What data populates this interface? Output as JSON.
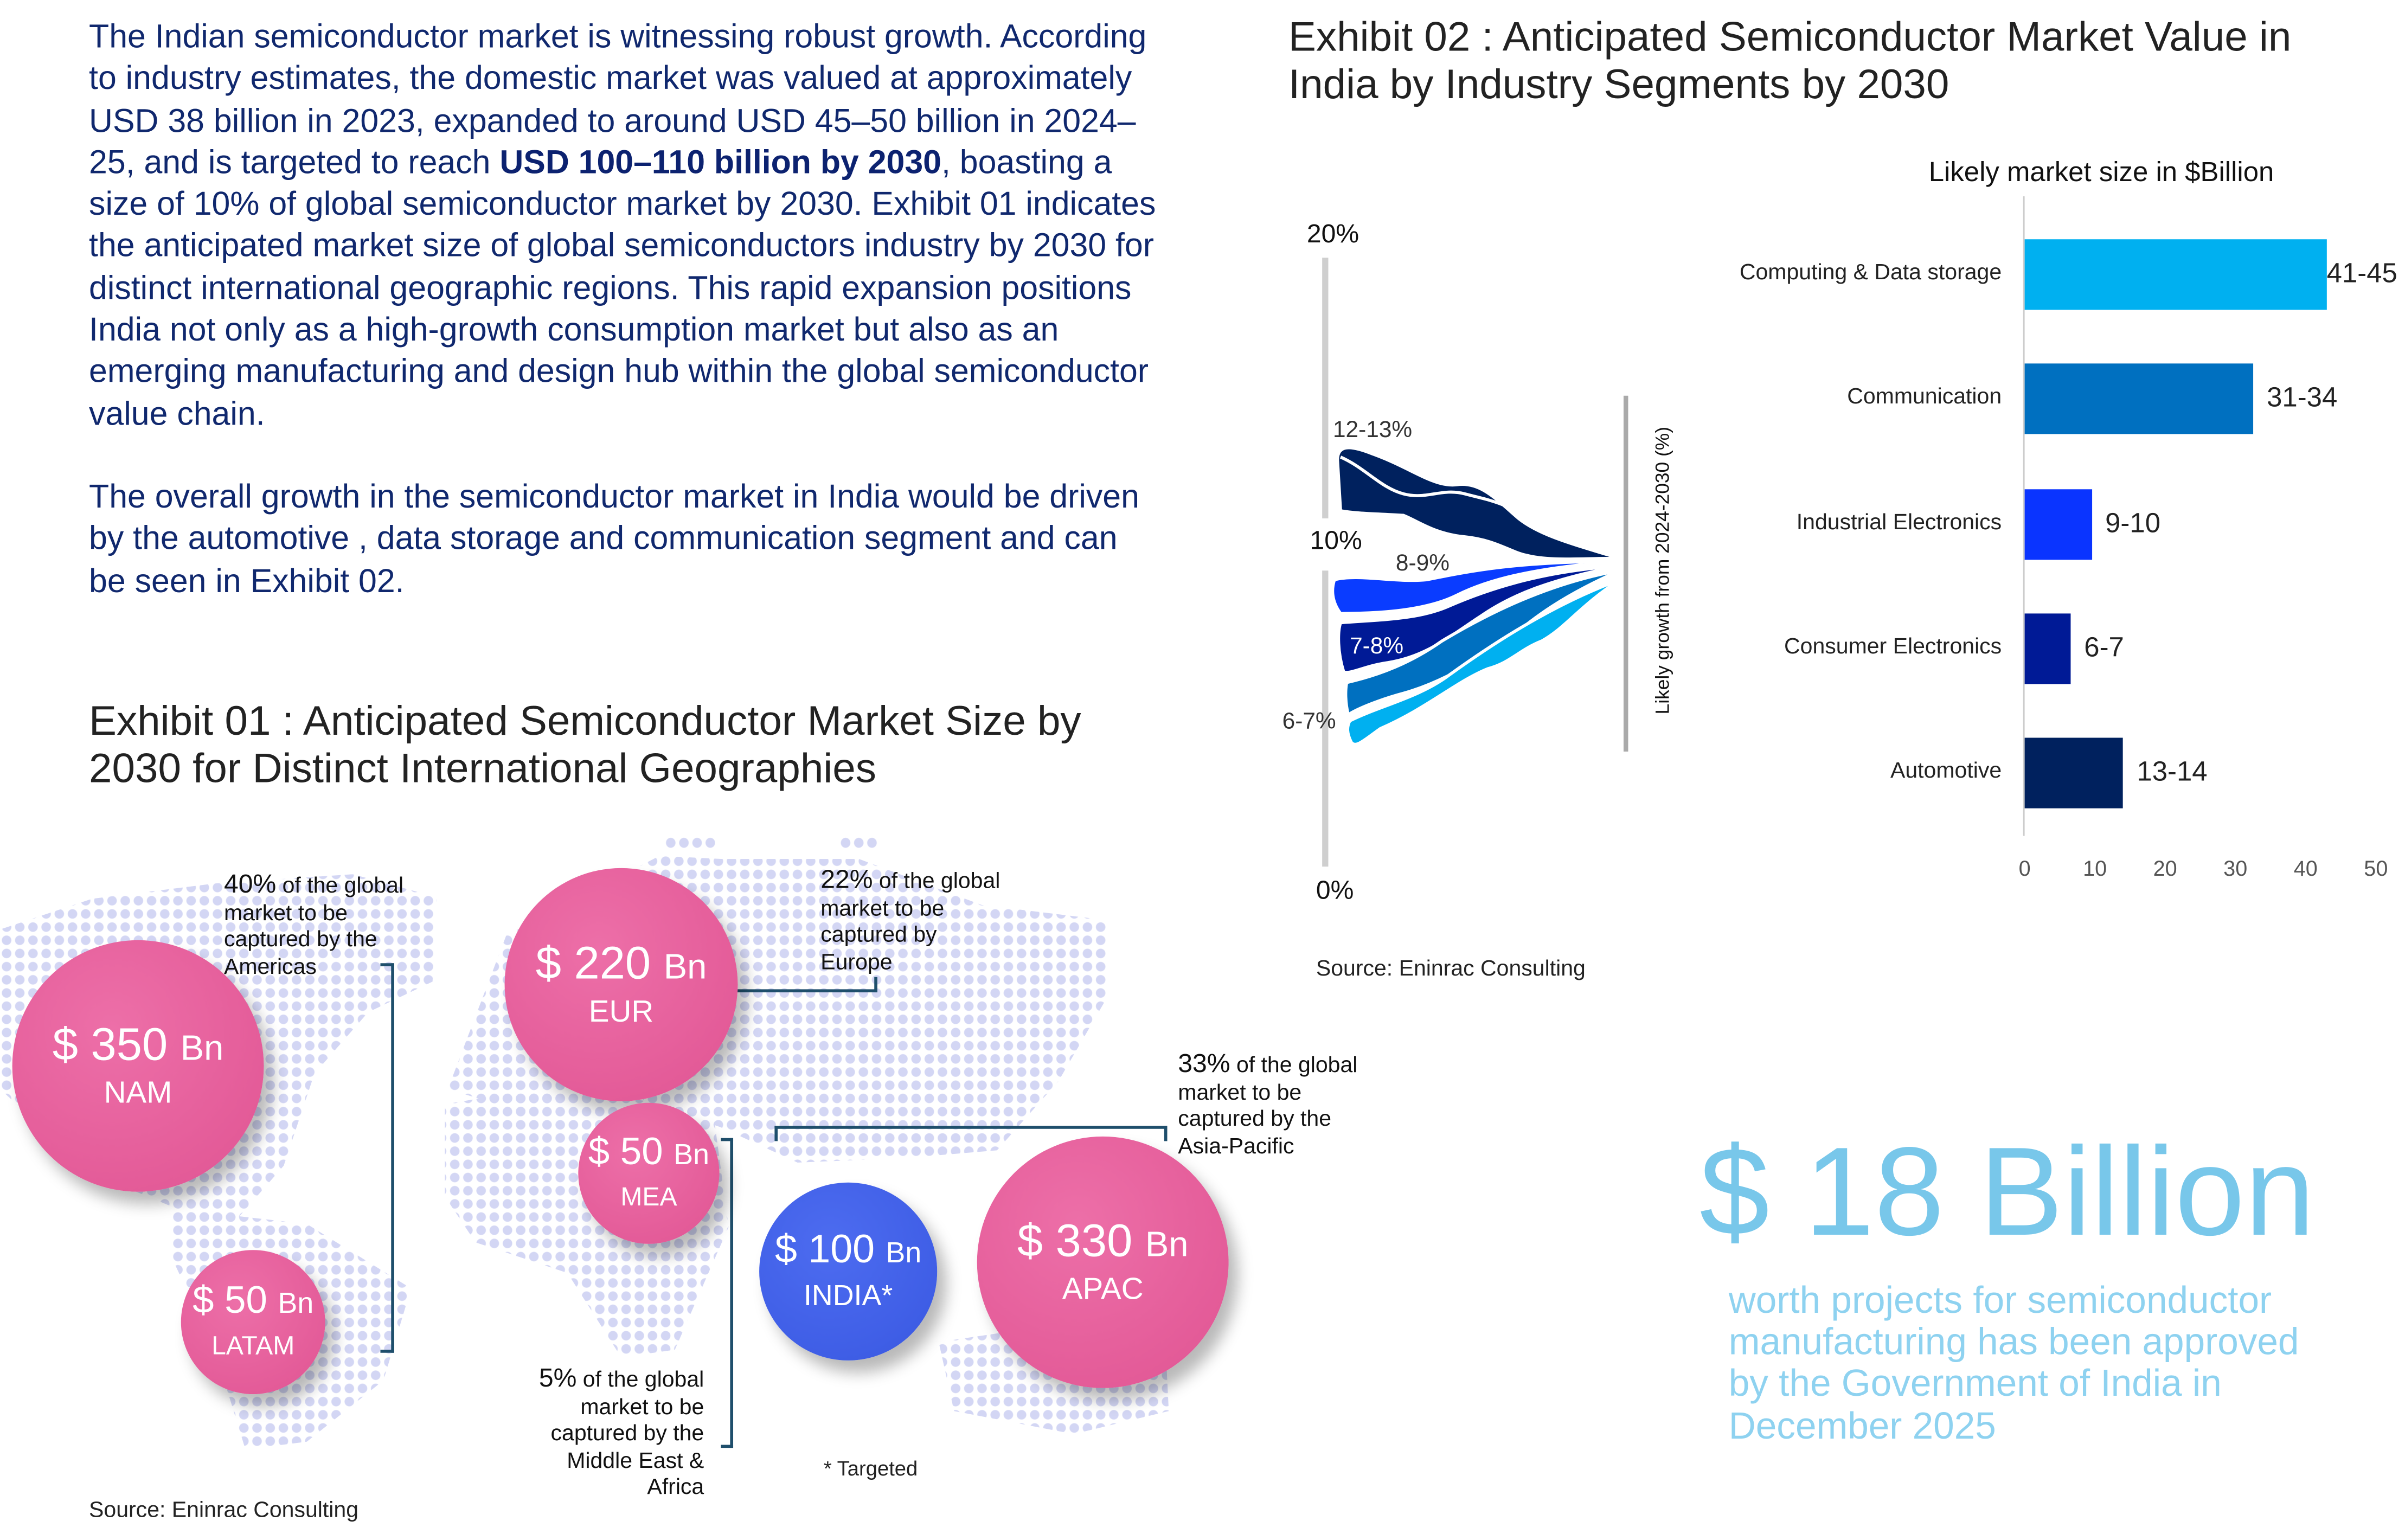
{
  "intro": {
    "p1_a": "The Indian semiconductor market is witnessing robust growth. According to industry estimates, the domestic market was valued at approximately USD 38 billion in 2023, expanded to around USD 45–50 billion in 2024–25, and is targeted to reach ",
    "p1_bold": "USD 100–110 billion by 2030",
    "p1_b": ", boasting a size of 10% of global semiconductor market by 2030. Exhibit 01 indicates the anticipated market size of global semiconductors industry by 2030 for distinct international geographic regions. This rapid expansion positions India not only as a high-growth consumption market but also as an emerging manufacturing and design hub within the global semiconductor value chain.",
    "p2": "The overall growth in the semiconductor market in India would be driven by the automotive , data storage and communication segment and can be seen in Exhibit 02."
  },
  "exhibit01": {
    "title": "Exhibit 01 : Anticipated Semiconductor Market Size by 2030 for Distinct International Geographies",
    "regions": [
      {
        "value": "$ 350",
        "unit": "Bn",
        "region": "NAM"
      },
      {
        "value": "$ 220",
        "unit": "Bn",
        "region": "EUR"
      },
      {
        "value": "$ 50",
        "unit": "Bn",
        "region": "MEA"
      },
      {
        "value": "$ 50",
        "unit": "Bn",
        "region": "LATAM"
      },
      {
        "value": "$ 100",
        "unit": "Bn",
        "region": "INDIA*"
      },
      {
        "value": "$ 330",
        "unit": "Bn",
        "region": "APAC"
      }
    ],
    "notes": {
      "americas_pct": "40%",
      "americas_text": " of the global market to be captured by the Americas",
      "europe_pct": "22%",
      "europe_text": " of the global market to be captured by Europe",
      "apac_pct": "33%",
      "apac_text": " of the global market to be captured by the Asia-Pacific",
      "mea_pct": "5%",
      "mea_text": " of the global market to be captured by the Middle East & Africa"
    },
    "footnote": "* Targeted",
    "source": "Source: Eninrac Consulting",
    "colors": {
      "bubble": "#e45c99",
      "india": "#3f5ee6",
      "dots": "#d3d6f4",
      "bracket": "#1f4f6c"
    }
  },
  "exhibit02": {
    "title": "Exhibit 02 : Anticipated Semiconductor Market Value in India by Industry Segments by 2030",
    "source": "Source: Eninrac Consulting"
  },
  "chart_data": [
    {
      "type": "area",
      "ylabel": "Likely growth from 2024-2030 (%)",
      "yticks": [
        "20%",
        "10%",
        "0%"
      ],
      "ylim": [
        0,
        20
      ],
      "annotations": [
        "12-13%",
        "8-9%",
        "7-8%",
        "6-7%"
      ],
      "series": [
        {
          "label": "12-13%",
          "color": "#00215e"
        },
        {
          "label": "8-9%",
          "color": "#0a3cff"
        },
        {
          "label": "7-8%",
          "color": "#001a96"
        },
        {
          "color": "#0070c0"
        },
        {
          "label": "6-7%",
          "color": "#00b0f0"
        }
      ]
    },
    {
      "type": "bar",
      "orientation": "horizontal",
      "title": "Likely market size in $Billion",
      "categories": [
        "Computing & Data storage",
        "Communication",
        "Industrial Electronics",
        "Consumer Electronics",
        "Automotive"
      ],
      "values": [
        43,
        32.5,
        9.5,
        6.5,
        14
      ],
      "value_labels": [
        "41-45",
        "31-34",
        "9-10",
        "6-7",
        "13-14"
      ],
      "colors": [
        "#00b0f0",
        "#0070c0",
        "#0a34ff",
        "#001a96",
        "#00215e"
      ],
      "xlim": [
        0,
        50
      ],
      "xticks": [
        "0",
        "10",
        "20",
        "30",
        "40",
        "50"
      ]
    }
  ],
  "highlight": {
    "big": "$ 18 Billion",
    "text": "worth projects for semiconductor manufacturing has been approved by the Government of India in December 2025",
    "colors": {
      "big": "#78c7ea",
      "text": "#8ed2f0"
    }
  }
}
